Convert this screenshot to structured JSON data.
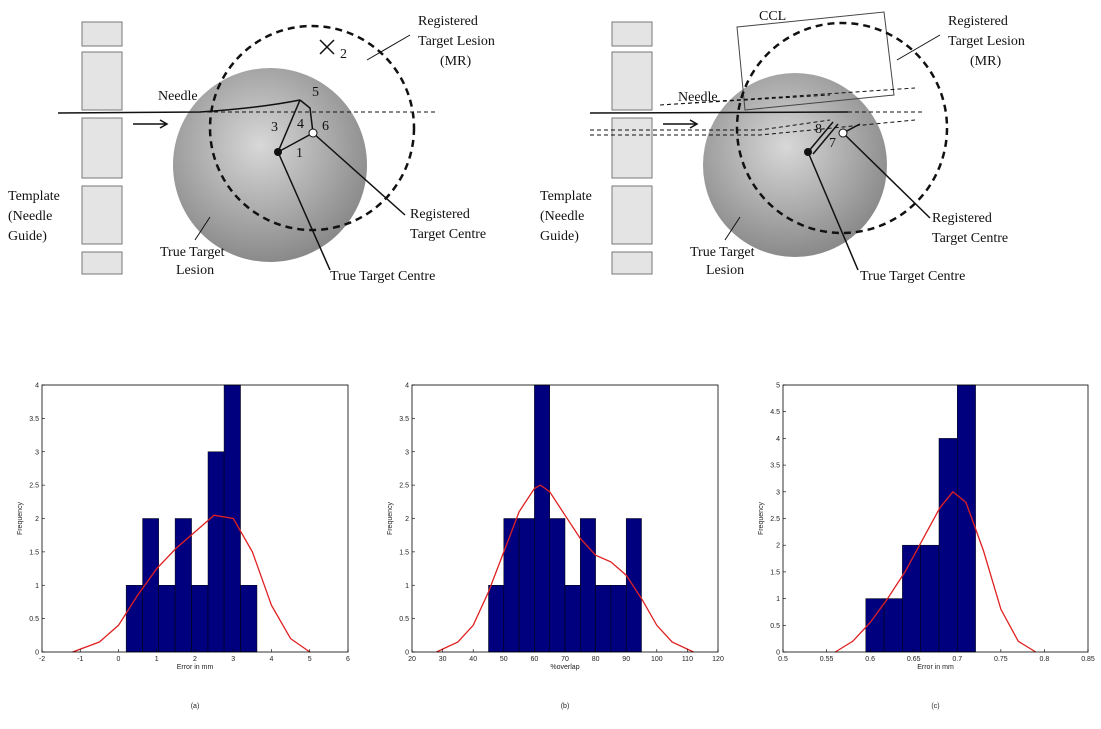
{
  "diagrams": [
    {
      "needle": "Needle",
      "numbers": [
        "5",
        "2",
        "3",
        "4",
        "6",
        "1"
      ],
      "registered_lesion": [
        "Registered",
        "Target Lesion",
        "(MR)"
      ],
      "template": [
        "Template",
        "(Needle",
        "Guide)"
      ],
      "true_lesion": [
        "True Target",
        "Lesion"
      ],
      "registered_centre": [
        "Registered",
        "Target Centre"
      ],
      "true_centre": "True Target Centre"
    },
    {
      "ccl": "CCL",
      "needle": "Needle",
      "numbers": [
        "8",
        "7"
      ],
      "registered_lesion": [
        "Registered",
        "Target Lesion",
        "(MR)"
      ],
      "template": [
        "Template",
        "(Needle",
        "Guide)"
      ],
      "true_lesion": [
        "True Target",
        "Lesion"
      ],
      "registered_centre": [
        "Registered",
        "Target Centre"
      ],
      "true_centre": "True Target Centre"
    }
  ],
  "chart_data": [
    {
      "type": "histogram",
      "x_label": "Error in mm",
      "y_label": "Frequency",
      "color": "#00007f",
      "bins": [
        0.2,
        0.63,
        1.05,
        1.48,
        1.91,
        2.34,
        2.76,
        3.19,
        3.62
      ],
      "values": [
        1,
        2,
        1,
        2,
        1,
        3,
        4,
        1
      ],
      "curve": {
        "color": "#e02020",
        "x": [
          -1.2,
          -0.5,
          0,
          0.5,
          1,
          1.5,
          2,
          2.5,
          3,
          3.5,
          4,
          4.5,
          5
        ],
        "values": [
          0,
          0.15,
          0.4,
          0.85,
          1.25,
          1.55,
          1.8,
          2.05,
          2.0,
          1.5,
          0.7,
          0.2,
          0
        ]
      },
      "xlim": [
        -2,
        6
      ],
      "xticks": [
        -2,
        -1,
        0,
        1,
        2,
        3,
        4,
        5,
        6
      ],
      "ylim": [
        0,
        4
      ],
      "yticks": [
        0,
        0.5,
        1,
        1.5,
        2,
        2.5,
        3,
        3.5,
        4
      ]
    },
    {
      "type": "histogram",
      "x_label": "%overlap",
      "y_label": "Frequency",
      "color": "#00007f",
      "bins": [
        45,
        50,
        55,
        60,
        65,
        70,
        75,
        80,
        85,
        90,
        95
      ],
      "values": [
        1,
        2,
        2,
        4,
        2,
        1,
        2,
        1,
        1,
        2
      ],
      "curve": {
        "color": "#e02020",
        "x": [
          28,
          35,
          40,
          45,
          50,
          55,
          60,
          62,
          65,
          70,
          75,
          80,
          85,
          90,
          95,
          100,
          105,
          112
        ],
        "values": [
          0,
          0.15,
          0.4,
          0.9,
          1.5,
          2.1,
          2.45,
          2.5,
          2.4,
          2.05,
          1.7,
          1.45,
          1.35,
          1.15,
          0.8,
          0.4,
          0.15,
          0
        ]
      },
      "xlim": [
        20,
        120
      ],
      "xticks": [
        20,
        30,
        40,
        50,
        60,
        70,
        80,
        90,
        100,
        110,
        120
      ],
      "ylim": [
        0,
        4
      ],
      "yticks": [
        0,
        0.5,
        1,
        1.5,
        2,
        2.5,
        3,
        3.5,
        4
      ]
    },
    {
      "type": "histogram",
      "x_label": "Error in mm",
      "y_label": "Frequency",
      "color": "#00007f",
      "bins": [
        0.595,
        0.616,
        0.637,
        0.658,
        0.679,
        0.7,
        0.721
      ],
      "values": [
        1,
        1,
        2,
        2,
        4,
        5
      ],
      "curve": {
        "color": "#e02020",
        "x": [
          0.56,
          0.58,
          0.6,
          0.62,
          0.64,
          0.66,
          0.68,
          0.695,
          0.71,
          0.73,
          0.75,
          0.77,
          0.79
        ],
        "values": [
          0,
          0.2,
          0.55,
          1.0,
          1.5,
          2.1,
          2.7,
          3.0,
          2.8,
          1.9,
          0.8,
          0.2,
          0
        ]
      },
      "xlim": [
        0.5,
        0.85
      ],
      "xticks": [
        0.5,
        0.55,
        0.6,
        0.65,
        0.7,
        0.75,
        0.8,
        0.85
      ],
      "ylim": [
        0,
        5
      ],
      "yticks": [
        0,
        0.5,
        1,
        1.5,
        2,
        2.5,
        3,
        3.5,
        4,
        4.5,
        5
      ]
    }
  ],
  "captions": [
    "(a)",
    "(b)",
    "(c)"
  ]
}
